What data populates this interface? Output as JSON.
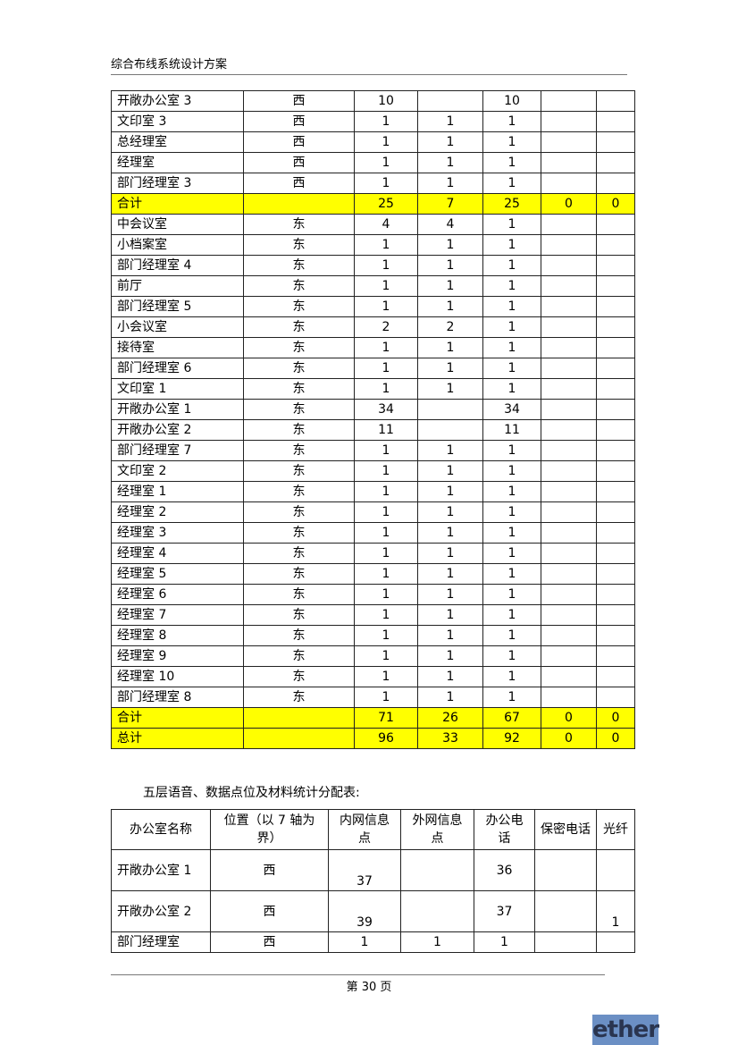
{
  "header": {
    "title": "综合布线系统设计方案"
  },
  "table1": {
    "rows": [
      [
        "开敞办公室 3",
        "西",
        "10",
        "",
        "10",
        "",
        ""
      ],
      [
        "文印室 3",
        "西",
        "1",
        "1",
        "1",
        "",
        ""
      ],
      [
        "总经理室",
        "西",
        "1",
        "1",
        "1",
        "",
        ""
      ],
      [
        "经理室",
        "西",
        "1",
        "1",
        "1",
        "",
        ""
      ],
      [
        "部门经理室 3",
        "西",
        "1",
        "1",
        "1",
        "",
        ""
      ],
      [
        "合计",
        "",
        "25",
        "7",
        "25",
        "0",
        "0"
      ],
      [
        "中会议室",
        "东",
        "4",
        "4",
        "1",
        "",
        ""
      ],
      [
        "小档案室",
        "东",
        "1",
        "1",
        "1",
        "",
        ""
      ],
      [
        "部门经理室 4",
        "东",
        "1",
        "1",
        "1",
        "",
        ""
      ],
      [
        "前厅",
        "东",
        "1",
        "1",
        "1",
        "",
        ""
      ],
      [
        "部门经理室 5",
        "东",
        "1",
        "1",
        "1",
        "",
        ""
      ],
      [
        "小会议室",
        "东",
        "2",
        "2",
        "1",
        "",
        ""
      ],
      [
        "接待室",
        "东",
        "1",
        "1",
        "1",
        "",
        ""
      ],
      [
        "部门经理室 6",
        "东",
        "1",
        "1",
        "1",
        "",
        ""
      ],
      [
        "文印室 1",
        "东",
        "1",
        "1",
        "1",
        "",
        ""
      ],
      [
        "开敞办公室 1",
        "东",
        "34",
        "",
        "34",
        "",
        ""
      ],
      [
        "开敞办公室 2",
        "东",
        "11",
        "",
        "11",
        "",
        ""
      ],
      [
        "部门经理室 7",
        "东",
        "1",
        "1",
        "1",
        "",
        ""
      ],
      [
        "文印室 2",
        "东",
        "1",
        "1",
        "1",
        "",
        ""
      ],
      [
        "经理室 1",
        "东",
        "1",
        "1",
        "1",
        "",
        ""
      ],
      [
        "经理室 2",
        "东",
        "1",
        "1",
        "1",
        "",
        ""
      ],
      [
        "经理室 3",
        "东",
        "1",
        "1",
        "1",
        "",
        ""
      ],
      [
        "经理室 4",
        "东",
        "1",
        "1",
        "1",
        "",
        ""
      ],
      [
        "经理室 5",
        "东",
        "1",
        "1",
        "1",
        "",
        ""
      ],
      [
        "经理室 6",
        "东",
        "1",
        "1",
        "1",
        "",
        ""
      ],
      [
        "经理室 7",
        "东",
        "1",
        "1",
        "1",
        "",
        ""
      ],
      [
        "经理室 8",
        "东",
        "1",
        "1",
        "1",
        "",
        ""
      ],
      [
        "经理室 9",
        "东",
        "1",
        "1",
        "1",
        "",
        ""
      ],
      [
        "经理室 10",
        "东",
        "1",
        "1",
        "1",
        "",
        ""
      ],
      [
        "部门经理室 8",
        "东",
        "1",
        "1",
        "1",
        "",
        ""
      ],
      [
        "合计",
        "",
        "71",
        "26",
        "67",
        "0",
        "0"
      ],
      [
        "总计",
        "",
        "96",
        "33",
        "92",
        "0",
        "0"
      ]
    ],
    "highlight_color": "#ffff00"
  },
  "caption": "五层语音、数据点位及材料统计分配表:",
  "table2": {
    "headers": [
      "办公室名称",
      "位置（以 7 轴为界）",
      "内网信息点",
      "外网信息点",
      "办公电话",
      "保密电话",
      "光纤"
    ],
    "rows": [
      [
        "开敞办公室 1",
        "西",
        "37",
        "",
        "36",
        "",
        ""
      ],
      [
        "开敞办公室 2",
        "西",
        "39",
        "",
        "37",
        "",
        "1"
      ],
      [
        "部门经理室",
        "西",
        "1",
        "1",
        "1",
        "",
        ""
      ]
    ]
  },
  "footer": {
    "page": "第 30 页"
  },
  "logo": {
    "text": "ether"
  }
}
